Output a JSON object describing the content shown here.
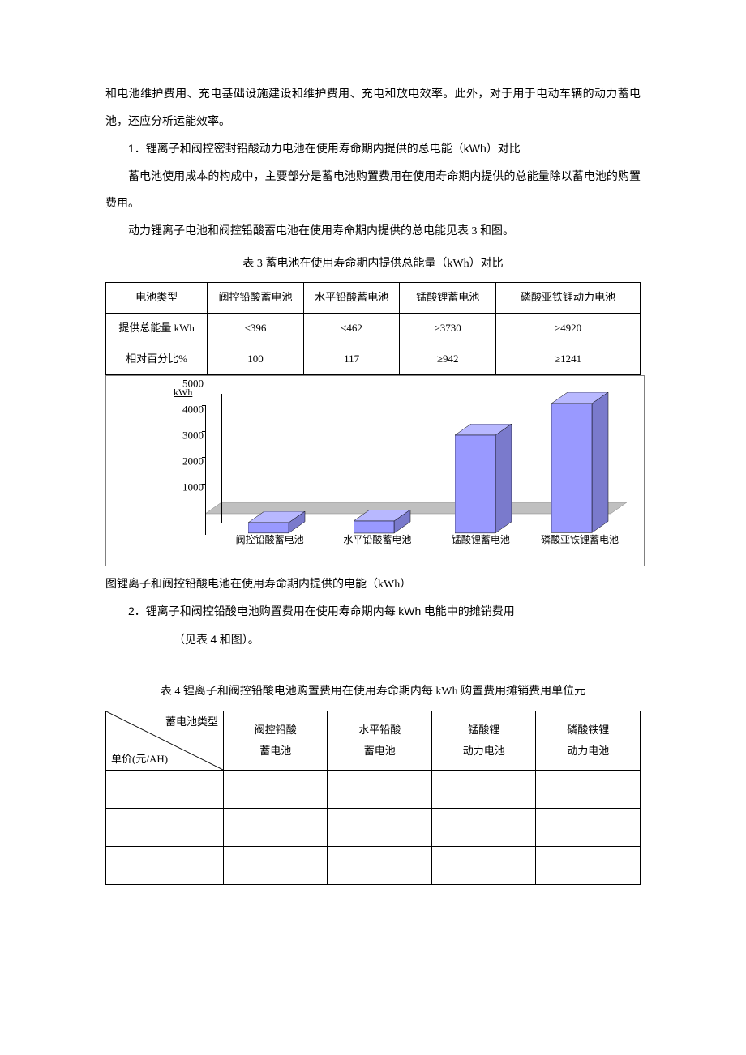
{
  "para1": "和电池维护费用、充电基础设施建设和维护费用、充电和放电效率。此外，对于用于电动车辆的动力蓄电池，还应分析运能效率。",
  "sec1_num": "1",
  "sec1_title": "．锂离子和阀控密封铅酸动力电池在使用寿命期内提供的总电能（",
  "sec1_kwh": "kWh",
  "sec1_tail": "）对比",
  "para2": "蓄电池使用成本的构成中，主要部分是蓄电池购置费用在使用寿命期内提供的总能量除以蓄电池的购置费用。",
  "para3": "动力锂离子电池和阀控铅酸蓄电池在使用寿命期内提供的总电能见表 3 和图。",
  "table3_caption": "表 3 蓄电池在使用寿命期内提供总能量（kWh）对比",
  "table3": {
    "headers": [
      "电池类型",
      "阀控铅酸蓄电池",
      "水平铅酸蓄电池",
      "锰酸锂蓄电池",
      "磷酸亚铁锂动力电池"
    ],
    "rows": [
      [
        "提供总能量 kWh",
        "≤396",
        "≤462",
        "≥3730",
        "≥4920"
      ],
      [
        "相对百分比%",
        "100",
        "117",
        "≥942",
        "≥1241"
      ]
    ],
    "col_widths": [
      "19%",
      "18%",
      "18%",
      "18%",
      "27%"
    ]
  },
  "chart": {
    "type": "bar",
    "y_title": "kWh",
    "y_ticks": [
      "5000",
      "4000",
      "3000",
      "2000",
      "1000"
    ],
    "y_max": 5000,
    "categories": [
      "阀控铅酸蓄电池",
      "水平铅酸蓄电池",
      "锰酸锂蓄电池",
      "磷酸亚铁锂蓄电池"
    ],
    "x_positions_pct": [
      15,
      40,
      64,
      87
    ],
    "values": [
      396,
      462,
      3730,
      4920
    ],
    "bar_face_color": "#9999ff",
    "bar_top_color": "#b8b8ff",
    "bar_side_color": "#7a7acc",
    "floor_color": "#c0c0c0",
    "axis_color": "#000000",
    "label_fontsize": 12
  },
  "fig_caption": "图锂离子和阀控铅酸电池在使用寿命期内提供的电能（kWh）",
  "sec2_num": "2",
  "sec2_title_a": "．锂离子和阀控铅酸电池购置费用在使用寿命期内每 ",
  "sec2_kwh": "kWh",
  "sec2_title_b": " 电能中的摊销费用",
  "sec2_tail_pre": "（见表 ",
  "sec2_tail_num": "4",
  "sec2_tail_post": " 和图）。",
  "table4_caption": "表 4 锂离子和阀控铅酸电池购置费用在使用寿命期内每 kWh 购置费用摊销费用单位元",
  "table4": {
    "diag_top": "蓄电池类型",
    "diag_bot": "单价(元/AH)",
    "headers": [
      "阀控铅酸\n蓄电池",
      "水平铅酸\n蓄电池",
      "锰酸锂\n动力电池",
      "磷酸铁锂\n动力电池"
    ],
    "rows": [
      [
        "",
        "",
        "",
        ""
      ],
      [
        "",
        "",
        "",
        ""
      ],
      [
        "",
        "",
        "",
        ""
      ]
    ],
    "col_widths": [
      "22%",
      "19.5%",
      "19.5%",
      "19.5%",
      "19.5%"
    ]
  }
}
